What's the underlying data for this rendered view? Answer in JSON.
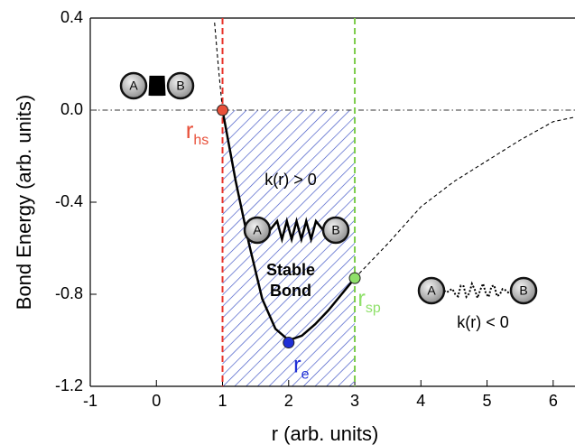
{
  "chart_data": {
    "type": "line",
    "xlabel": "r (arb. units)",
    "ylabel": "Bond Energy (arb. units)",
    "xlim": [
      -1,
      6.33
    ],
    "ylim": [
      -1.2,
      0.4
    ],
    "xticks": [
      -1,
      0,
      1,
      2,
      3,
      4,
      5,
      6
    ],
    "yticks": [
      0.4,
      {
        "value": 0,
        "label": "0.0"
      },
      -0.4,
      -0.8,
      -1.2
    ],
    "curves": [
      {
        "style": "solid",
        "color": "#000000",
        "x": [
          1,
          1.2,
          1.4,
          1.6,
          1.8,
          2.0,
          2.2,
          2.4,
          2.6,
          2.8,
          3.0
        ],
        "y": [
          0,
          -0.31,
          -0.58,
          -0.82,
          -0.95,
          -1.0,
          -0.98,
          -0.93,
          -0.87,
          -0.8,
          -0.73
        ]
      },
      {
        "style": "dashed",
        "color": "#000000",
        "x": [
          0.88,
          0.94,
          1.0
        ],
        "y": [
          0.38,
          0.18,
          0
        ]
      },
      {
        "style": "dashed",
        "color": "#000000",
        "x": [
          3.0,
          3.5,
          4.0,
          4.5,
          5.0,
          5.5,
          6.0,
          6.33
        ],
        "y": [
          -0.73,
          -0.58,
          -0.42,
          -0.31,
          -0.22,
          -0.13,
          -0.05,
          -0.03
        ]
      }
    ],
    "vlines": [
      {
        "x": 1,
        "color": "#e8332b"
      },
      {
        "x": 3,
        "color": "#7ccc4a"
      }
    ],
    "hline": 0,
    "hatch_color": "#3a4fc4",
    "points": [
      {
        "x": 1,
        "y": 0,
        "color": "#e8503a",
        "label": "r",
        "subscript": "hs"
      },
      {
        "x": 2,
        "y": -1.01,
        "color": "#1f2fd6",
        "label": "r",
        "subscript": "e"
      },
      {
        "x": 3,
        "y": -0.73,
        "color": "#8fe06a",
        "label": "r",
        "subscript": "sp"
      }
    ],
    "annotations": [
      "k(r) > 0",
      "Stable",
      "Bond",
      "k(r) < 0"
    ],
    "molecules": [
      {
        "left": "A",
        "right": "B"
      },
      {
        "left": "A",
        "right": "B"
      },
      {
        "left": "A",
        "right": "B"
      }
    ]
  }
}
